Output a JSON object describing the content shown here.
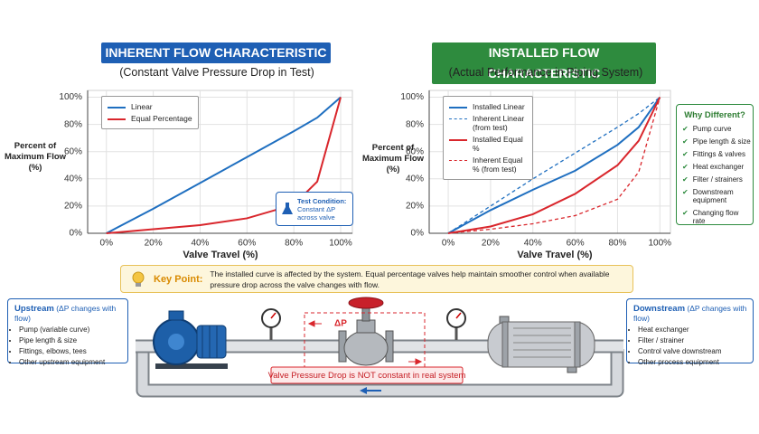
{
  "chart_data": [
    {
      "type": "line",
      "title": "INHERENT FLOW CHARACTERISTIC",
      "title_color": "#1e5fb4",
      "subtitle": "(Constant Valve Pressure Drop in Test)",
      "y_label": "Percent of Maximum Flow (%)",
      "x_label": "Valve Travel (%)",
      "x": [
        0,
        20,
        40,
        60,
        80,
        90,
        100
      ],
      "series": [
        {
          "name": "Linear",
          "color": "#1f6fc0",
          "values": [
            0,
            18,
            37,
            56,
            75,
            85,
            100
          ]
        },
        {
          "name": "Equal Percentage",
          "color": "#d9262c",
          "values": [
            0,
            3,
            6,
            11,
            21,
            38,
            100
          ]
        }
      ],
      "xlim": [
        -8,
        105
      ],
      "ylim": [
        0,
        105
      ],
      "xticks": [
        {
          "value": 0,
          "label": "0%"
        },
        {
          "value": 20,
          "label": "20%"
        },
        {
          "value": 40,
          "label": "40%"
        },
        {
          "value": 60,
          "label": "60%"
        },
        {
          "value": 80,
          "label": "80%"
        },
        {
          "value": 100,
          "label": "100%"
        }
      ],
      "yticks": [
        {
          "value": 0,
          "label": "0%"
        },
        {
          "value": 20,
          "label": "20%"
        },
        {
          "value": 40,
          "label": "40%"
        },
        {
          "value": 60,
          "label": "60%"
        },
        {
          "value": 80,
          "label": "80%"
        },
        {
          "value": 100,
          "label": "100%"
        }
      ],
      "grid": true,
      "legend": "upper left",
      "annotation": {
        "title": "Test Condition:",
        "text": "Constant ΔP across valve"
      }
    },
    {
      "type": "line",
      "title": "INSTALLED FLOW CHARACTERISTIC",
      "title_color": "#2e8b3e",
      "subtitle": "(Actual Performance in Piping System)",
      "y_label": "Percent of Maximum Flow (%)",
      "x_label": "Valve Travel (%)",
      "x": [
        0,
        20,
        40,
        60,
        80,
        90,
        100
      ],
      "series": [
        {
          "name": "Installed Linear",
          "color": "#1f6fc0",
          "dash": false,
          "values": [
            0,
            17,
            32,
            46,
            65,
            78,
            100
          ]
        },
        {
          "name": "Inherent Linear (from test)",
          "color": "#1f6fc0",
          "dash": true,
          "values": [
            0,
            20,
            40,
            59,
            78,
            88,
            100
          ]
        },
        {
          "name": "Installed Equal %",
          "color": "#d9262c",
          "dash": false,
          "values": [
            0,
            5,
            14,
            29,
            50,
            68,
            100
          ]
        },
        {
          "name": "Inherent Equal % (from test)",
          "color": "#d9262c",
          "dash": true,
          "values": [
            0,
            3,
            7,
            13,
            25,
            45,
            100
          ]
        }
      ],
      "xlim": [
        -9,
        105
      ],
      "ylim": [
        0,
        105
      ],
      "xticks": [
        {
          "value": 0,
          "label": "0%"
        },
        {
          "value": 20,
          "label": "20%"
        },
        {
          "value": 40,
          "label": "40%"
        },
        {
          "value": 60,
          "label": "60%"
        },
        {
          "value": 80,
          "label": "80%"
        },
        {
          "value": 100,
          "label": "100%"
        }
      ],
      "yticks": [
        {
          "value": 0,
          "label": "0%"
        },
        {
          "value": 20,
          "label": "20%"
        },
        {
          "value": 40,
          "label": "40%"
        },
        {
          "value": 60,
          "label": "60%"
        },
        {
          "value": 80,
          "label": "80%"
        },
        {
          "value": 100,
          "label": "100%"
        }
      ],
      "grid": true,
      "legend": "upper left"
    }
  ],
  "why_different": {
    "title": "Why Different?",
    "items": [
      "Pump curve",
      "Pipe length & size",
      "Fittings & valves",
      "Heat exchanger",
      "Filter / strainers",
      "Downstream equipment",
      "Changing flow rate"
    ]
  },
  "key_point": {
    "label": "Key Point:",
    "text": "The installed curve is affected by the system. Equal percentage valves help maintain smoother control when available pressure drop across the valve changes with flow."
  },
  "upstream": {
    "title": "Upstream",
    "note": "(ΔP changes with flow)",
    "items": [
      "Pump (variable curve)",
      "Pipe length & size",
      "Fittings, elbows, tees",
      "Other upstream equipment"
    ]
  },
  "downstream": {
    "title": "Downstream",
    "note": "(ΔP changes with flow)",
    "items": [
      "Heat exchanger",
      "Filter / strainer",
      "Control valve downstream",
      "Other process equipment"
    ]
  },
  "diagram": {
    "delta_p": "ΔP",
    "label": "Valve Pressure Drop is NOT constant in real system"
  }
}
